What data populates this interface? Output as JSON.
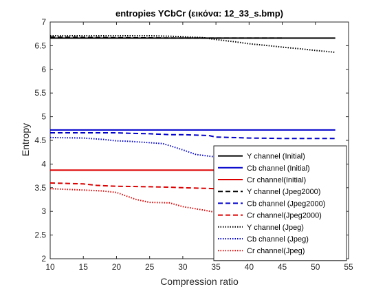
{
  "chart_data": {
    "type": "line",
    "title": "entropies YCbCr (εικόνα: 12_33_s.bmp)",
    "xlabel": "Compression ratio",
    "ylabel": "Entropy",
    "xlim": [
      10,
      55
    ],
    "ylim": [
      2,
      7
    ],
    "xticks": [
      10,
      15,
      20,
      25,
      30,
      35,
      40,
      45,
      50,
      55
    ],
    "yticks": [
      2,
      2.5,
      3,
      3.5,
      4,
      4.5,
      5,
      5.5,
      6,
      6.5,
      7
    ],
    "xtick_labels": [
      "10",
      "15",
      "20",
      "25",
      "30",
      "35",
      "40",
      "45",
      "50",
      "55"
    ],
    "ytick_labels": [
      "2",
      "2.5",
      "3",
      "3.5",
      "4",
      "4.5",
      "5",
      "5.5",
      "6",
      "6.5",
      "7"
    ],
    "grid": false,
    "legend_position": "bottom-right",
    "series": [
      {
        "name": "Y channel (Initial)",
        "color": "#000000",
        "style": "solid",
        "points": [
          [
            10,
            6.66
          ],
          [
            53,
            6.66
          ]
        ]
      },
      {
        "name": "Cb channel (Initial)",
        "color": "#0000cc",
        "style": "solid",
        "points": [
          [
            10,
            4.72
          ],
          [
            53,
            4.72
          ]
        ]
      },
      {
        "name": "Cr channel(Initial)",
        "color": "#dd0000",
        "style": "solid",
        "points": [
          [
            10,
            3.87
          ],
          [
            53,
            3.87
          ]
        ]
      },
      {
        "name": "Y channel (Jpeg2000)",
        "color": "#000000",
        "style": "dashed",
        "points": [
          [
            10,
            6.68
          ],
          [
            20,
            6.67
          ],
          [
            30,
            6.66
          ],
          [
            35,
            6.66
          ],
          [
            40,
            6.66
          ],
          [
            45,
            6.66
          ]
        ]
      },
      {
        "name": "Cb channel (Jpeg2000)",
        "color": "#0000cc",
        "style": "dashed",
        "points": [
          [
            10,
            4.66
          ],
          [
            15,
            4.66
          ],
          [
            20,
            4.66
          ],
          [
            22,
            4.65
          ],
          [
            25,
            4.64
          ],
          [
            28,
            4.62
          ],
          [
            30,
            4.62
          ],
          [
            34,
            4.6
          ],
          [
            35,
            4.57
          ],
          [
            40,
            4.55
          ],
          [
            45,
            4.54
          ],
          [
            50,
            4.54
          ],
          [
            53,
            4.54
          ]
        ]
      },
      {
        "name": "Cr channel(Jpeg2000)",
        "color": "#dd0000",
        "style": "dashed",
        "points": [
          [
            10,
            3.6
          ],
          [
            15,
            3.58
          ],
          [
            17,
            3.55
          ],
          [
            20,
            3.53
          ],
          [
            25,
            3.52
          ],
          [
            28,
            3.51
          ],
          [
            30,
            3.5
          ],
          [
            35,
            3.48
          ],
          [
            40,
            3.46
          ],
          [
            45,
            3.45
          ]
        ]
      },
      {
        "name": "Y channel (Jpeg)",
        "color": "#000000",
        "style": "dotted",
        "points": [
          [
            10,
            6.71
          ],
          [
            15,
            6.71
          ],
          [
            20,
            6.71
          ],
          [
            25,
            6.71
          ],
          [
            28,
            6.7
          ],
          [
            30,
            6.69
          ],
          [
            33,
            6.67
          ],
          [
            35,
            6.63
          ],
          [
            38,
            6.58
          ],
          [
            40,
            6.54
          ],
          [
            43,
            6.5
          ],
          [
            45,
            6.47
          ],
          [
            48,
            6.43
          ],
          [
            50,
            6.4
          ],
          [
            53,
            6.36
          ]
        ]
      },
      {
        "name": "Cb channel (Jpeg)",
        "color": "#0000cc",
        "style": "dotted",
        "points": [
          [
            10,
            4.56
          ],
          [
            15,
            4.55
          ],
          [
            18,
            4.52
          ],
          [
            20,
            4.49
          ],
          [
            22,
            4.48
          ],
          [
            25,
            4.45
          ],
          [
            27,
            4.43
          ],
          [
            28,
            4.39
          ],
          [
            30,
            4.3
          ],
          [
            32,
            4.2
          ],
          [
            35,
            4.15
          ],
          [
            40,
            4.02
          ],
          [
            45,
            3.93
          ],
          [
            50,
            3.84
          ],
          [
            53,
            3.75
          ]
        ]
      },
      {
        "name": "Cr channel(Jpeg)",
        "color": "#dd0000",
        "style": "dotted",
        "points": [
          [
            10,
            3.48
          ],
          [
            15,
            3.45
          ],
          [
            18,
            3.43
          ],
          [
            20,
            3.4
          ],
          [
            22,
            3.3
          ],
          [
            23,
            3.25
          ],
          [
            25,
            3.19
          ],
          [
            28,
            3.18
          ],
          [
            30,
            3.1
          ],
          [
            33,
            3.03
          ],
          [
            35,
            2.98
          ],
          [
            40,
            2.8
          ],
          [
            45,
            2.58
          ],
          [
            50,
            2.38
          ],
          [
            53,
            2.2
          ]
        ]
      }
    ]
  }
}
